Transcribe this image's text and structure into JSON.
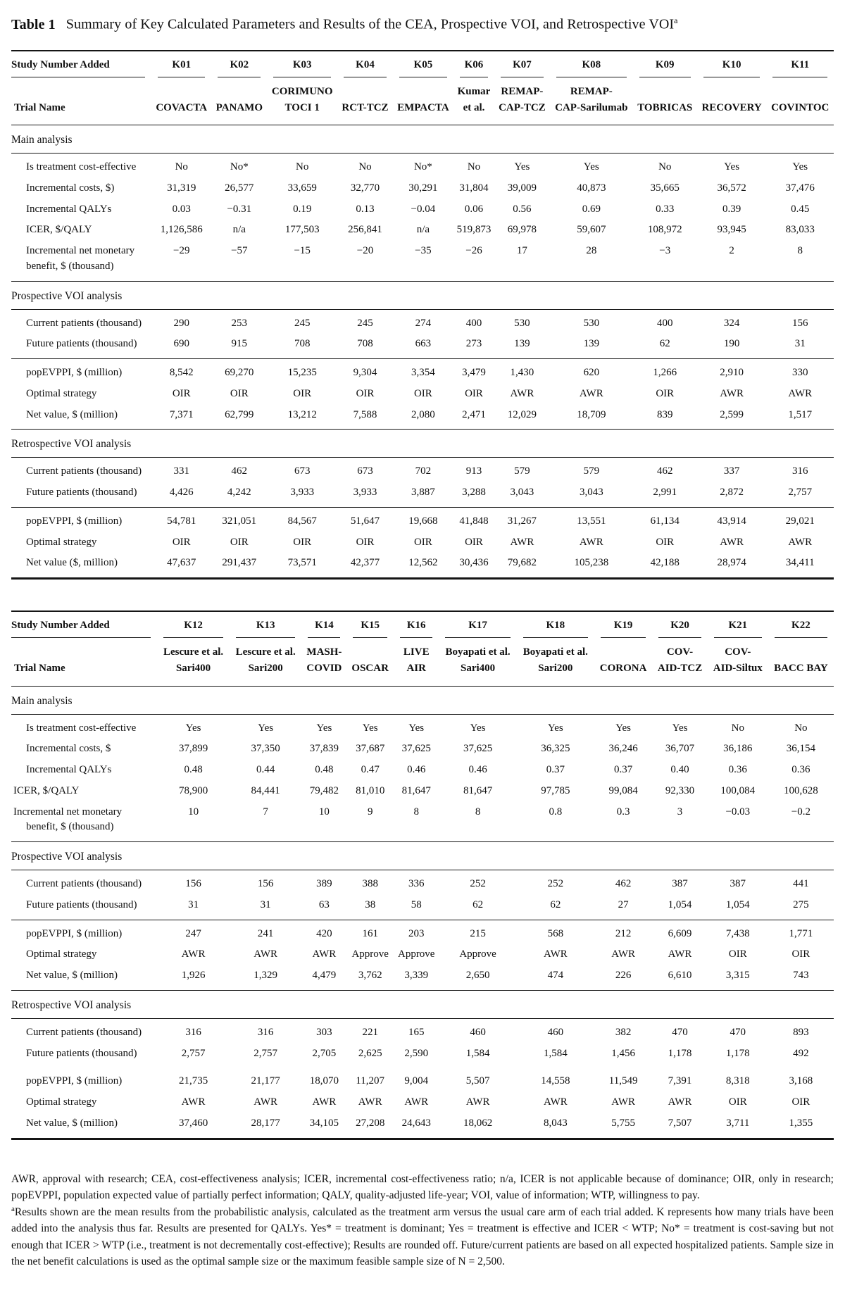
{
  "title": {
    "label": "Table 1",
    "text": "Summary of Key Calculated Parameters and Results of the CEA, Prospective VOI, and Retrospective VOI",
    "superscript": "a"
  },
  "tables": [
    {
      "study_header_label": "Study Number Added",
      "trial_header_label": "Trial Name",
      "studies": [
        "K01",
        "K02",
        "K03",
        "K04",
        "K05",
        "K06",
        "K07",
        "K08",
        "K09",
        "K10",
        "K11"
      ],
      "trials": [
        [
          "COVACTA"
        ],
        [
          "PANAMO"
        ],
        [
          "CORIMUNO",
          "TOCI 1"
        ],
        [
          "RCT-TCZ"
        ],
        [
          "EMPACTA"
        ],
        [
          "Kumar",
          "et al."
        ],
        [
          "REMAP-",
          "CAP-TCZ"
        ],
        [
          "REMAP-",
          "CAP-Sarilumab"
        ],
        [
          "TOBRICAS"
        ],
        [
          "RECOVERY"
        ],
        [
          "COVINTOC"
        ]
      ],
      "sections": [
        {
          "heading": "Main analysis",
          "divider": "rule",
          "groups": [
            [
              {
                "label": [
                  "Is treatment cost-effective"
                ],
                "values": [
                  "No",
                  "No*",
                  "No",
                  "No",
                  "No*",
                  "No",
                  "Yes",
                  "Yes",
                  "No",
                  "Yes",
                  "Yes"
                ]
              },
              {
                "label": [
                  "Incremental costs, $)"
                ],
                "values": [
                  "31,319",
                  "26,577",
                  "33,659",
                  "32,770",
                  "30,291",
                  "31,804",
                  "39,009",
                  "40,873",
                  "35,665",
                  "36,572",
                  "37,476"
                ]
              },
              {
                "label": [
                  "Incremental QALYs"
                ],
                "values": [
                  "0.03",
                  "−0.31",
                  "0.19",
                  "0.13",
                  "−0.04",
                  "0.06",
                  "0.56",
                  "0.69",
                  "0.33",
                  "0.39",
                  "0.45"
                ]
              },
              {
                "label": [
                  "ICER, $/QALY"
                ],
                "values": [
                  "1,126,586",
                  "n/a",
                  "177,503",
                  "256,841",
                  "n/a",
                  "519,873",
                  "69,978",
                  "59,607",
                  "108,972",
                  "93,945",
                  "83,033"
                ]
              },
              {
                "label": [
                  "Incremental net monetary",
                  "benefit, $ (thousand)"
                ],
                "values": [
                  "−29",
                  "−57",
                  "−15",
                  "−20",
                  "−35",
                  "−26",
                  "17",
                  "28",
                  "−3",
                  "2",
                  "8"
                ]
              }
            ]
          ]
        },
        {
          "heading": "Prospective VOI analysis",
          "divider": "rule",
          "groups": [
            [
              {
                "label": [
                  "Current patients (thousand)"
                ],
                "values": [
                  "290",
                  "253",
                  "245",
                  "245",
                  "274",
                  "400",
                  "530",
                  "530",
                  "400",
                  "324",
                  "156"
                ]
              },
              {
                "label": [
                  "Future patients (thousand)"
                ],
                "values": [
                  "690",
                  "915",
                  "708",
                  "708",
                  "663",
                  "273",
                  "139",
                  "139",
                  "62",
                  "190",
                  "31"
                ]
              }
            ],
            [
              {
                "label": [
                  "popEVPPI, $ (million)"
                ],
                "values": [
                  "8,542",
                  "69,270",
                  "15,235",
                  "9,304",
                  "3,354",
                  "3,479",
                  "1,430",
                  "620",
                  "1,266",
                  "2,910",
                  "330"
                ]
              },
              {
                "label": [
                  "Optimal strategy"
                ],
                "values": [
                  "OIR",
                  "OIR",
                  "OIR",
                  "OIR",
                  "OIR",
                  "OIR",
                  "AWR",
                  "AWR",
                  "OIR",
                  "AWR",
                  "AWR"
                ]
              },
              {
                "label": [
                  "Net value, $ (million)"
                ],
                "values": [
                  "7,371",
                  "62,799",
                  "13,212",
                  "7,588",
                  "2,080",
                  "2,471",
                  "12,029",
                  "18,709",
                  "839",
                  "2,599",
                  "1,517"
                ]
              }
            ]
          ]
        },
        {
          "heading": "Retrospective VOI analysis",
          "divider": "rule",
          "groups": [
            [
              {
                "label": [
                  "Current patients (thousand)"
                ],
                "values": [
                  "331",
                  "462",
                  "673",
                  "673",
                  "702",
                  "913",
                  "579",
                  "579",
                  "462",
                  "337",
                  "316"
                ]
              },
              {
                "label": [
                  "Future patients (thousand)"
                ],
                "values": [
                  "4,426",
                  "4,242",
                  "3,933",
                  "3,933",
                  "3,887",
                  "3,288",
                  "3,043",
                  "3,043",
                  "2,991",
                  "2,872",
                  "2,757"
                ]
              }
            ],
            [
              {
                "label": [
                  "popEVPPI, $ (million)"
                ],
                "values": [
                  "54,781",
                  "321,051",
                  "84,567",
                  "51,647",
                  "19,668",
                  "41,848",
                  "31,267",
                  "13,551",
                  "61,134",
                  "43,914",
                  "29,021"
                ]
              },
              {
                "label": [
                  "Optimal strategy"
                ],
                "values": [
                  "OIR",
                  "OIR",
                  "OIR",
                  "OIR",
                  "OIR",
                  "OIR",
                  "AWR",
                  "AWR",
                  "OIR",
                  "AWR",
                  "AWR"
                ]
              },
              {
                "label": [
                  "Net value ($, million)"
                ],
                "values": [
                  "47,637",
                  "291,437",
                  "73,571",
                  "42,377",
                  "12,562",
                  "30,436",
                  "79,682",
                  "105,238",
                  "42,188",
                  "28,974",
                  "34,411"
                ]
              }
            ]
          ]
        }
      ]
    },
    {
      "study_header_label": "Study Number Added",
      "trial_header_label": "Trial Name",
      "studies": [
        "K12",
        "K13",
        "K14",
        "K15",
        "K16",
        "K17",
        "K18",
        "K19",
        "K20",
        "K21",
        "K22"
      ],
      "trials": [
        [
          "Lescure et al.",
          "Sari400"
        ],
        [
          "Lescure et al.",
          "Sari200"
        ],
        [
          "MASH-",
          "COVID"
        ],
        [
          "OSCAR"
        ],
        [
          "LIVE",
          "AIR"
        ],
        [
          "Boyapati et al.",
          "Sari400"
        ],
        [
          "Boyapati et al.",
          "Sari200"
        ],
        [
          "CORONA"
        ],
        [
          "COV-",
          "AID-TCZ"
        ],
        [
          "COV-",
          "AID-Siltux"
        ],
        [
          "BACC BAY"
        ]
      ],
      "sections": [
        {
          "heading": "Main analysis",
          "divider": "rule",
          "groups": [
            [
              {
                "label": [
                  "Is treatment cost-effective"
                ],
                "values": [
                  "Yes",
                  "Yes",
                  "Yes",
                  "Yes",
                  "Yes",
                  "Yes",
                  "Yes",
                  "Yes",
                  "Yes",
                  "No",
                  "No"
                ]
              },
              {
                "label": [
                  "Incremental costs, $"
                ],
                "values": [
                  "37,899",
                  "37,350",
                  "37,839",
                  "37,687",
                  "37,625",
                  "37,625",
                  "36,325",
                  "36,246",
                  "36,707",
                  "36,186",
                  "36,154"
                ]
              },
              {
                "label": [
                  "Incremental QALYs"
                ],
                "values": [
                  "0.48",
                  "0.44",
                  "0.48",
                  "0.47",
                  "0.46",
                  "0.46",
                  "0.37",
                  "0.37",
                  "0.40",
                  "0.36",
                  "0.36"
                ]
              },
              {
                "label": [
                  "ICER, $/QALY"
                ],
                "flush": true,
                "values": [
                  "78,900",
                  "84,441",
                  "79,482",
                  "81,010",
                  "81,647",
                  "81,647",
                  "97,785",
                  "99,084",
                  "92,330",
                  "100,084",
                  "100,628"
                ]
              },
              {
                "label": [
                  "Incremental net monetary",
                  "benefit, $ (thousand)"
                ],
                "flush": true,
                "values": [
                  "10",
                  "7",
                  "10",
                  "9",
                  "8",
                  "8",
                  "0.8",
                  "0.3",
                  "3",
                  "−0.03",
                  "−0.2"
                ]
              }
            ]
          ]
        },
        {
          "heading": "Prospective VOI analysis",
          "divider": "rule",
          "groups": [
            [
              {
                "label": [
                  "Current patients (thousand)"
                ],
                "values": [
                  "156",
                  "156",
                  "389",
                  "388",
                  "336",
                  "252",
                  "252",
                  "462",
                  "387",
                  "387",
                  "441"
                ]
              },
              {
                "label": [
                  "Future patients (thousand)"
                ],
                "values": [
                  "31",
                  "31",
                  "63",
                  "38",
                  "58",
                  "62",
                  "62",
                  "27",
                  "1,054",
                  "1,054",
                  "275"
                ]
              }
            ],
            [
              {
                "label": [
                  "popEVPPI, $ (million)"
                ],
                "values": [
                  "247",
                  "241",
                  "420",
                  "161",
                  "203",
                  "215",
                  "568",
                  "212",
                  "6,609",
                  "7,438",
                  "1,771"
                ]
              },
              {
                "label": [
                  "Optimal strategy"
                ],
                "values": [
                  "AWR",
                  "AWR",
                  "AWR",
                  "Approve",
                  "Approve",
                  "Approve",
                  "AWR",
                  "AWR",
                  "AWR",
                  "OIR",
                  "OIR"
                ]
              },
              {
                "label": [
                  "Net value, $ (million)"
                ],
                "values": [
                  "1,926",
                  "1,329",
                  "4,479",
                  "3,762",
                  "3,339",
                  "2,650",
                  "474",
                  "226",
                  "6,610",
                  "3,315",
                  "743"
                ]
              }
            ]
          ]
        },
        {
          "heading": "Retrospective VOI analysis",
          "divider": "gap",
          "groups": [
            [
              {
                "label": [
                  "Current patients (thousand)"
                ],
                "values": [
                  "316",
                  "316",
                  "303",
                  "221",
                  "165",
                  "460",
                  "460",
                  "382",
                  "470",
                  "470",
                  "893"
                ]
              },
              {
                "label": [
                  "Future patients (thousand)"
                ],
                "values": [
                  "2,757",
                  "2,757",
                  "2,705",
                  "2,625",
                  "2,590",
                  "1,584",
                  "1,584",
                  "1,456",
                  "1,178",
                  "1,178",
                  "492"
                ]
              }
            ],
            [
              {
                "label": [
                  "popEVPPI, $ (million)"
                ],
                "values": [
                  "21,735",
                  "21,177",
                  "18,070",
                  "11,207",
                  "9,004",
                  "5,507",
                  "14,558",
                  "11,549",
                  "7,391",
                  "8,318",
                  "3,168"
                ]
              },
              {
                "label": [
                  "Optimal strategy"
                ],
                "values": [
                  "AWR",
                  "AWR",
                  "AWR",
                  "AWR",
                  "AWR",
                  "AWR",
                  "AWR",
                  "AWR",
                  "AWR",
                  "OIR",
                  "OIR"
                ]
              },
              {
                "label": [
                  "Net value, $ (million)"
                ],
                "values": [
                  "37,460",
                  "28,177",
                  "34,105",
                  "27,208",
                  "24,643",
                  "18,062",
                  "8,043",
                  "5,755",
                  "7,507",
                  "3,711",
                  "1,355"
                ]
              }
            ]
          ]
        }
      ]
    }
  ],
  "footnotes": [
    {
      "marker": "",
      "text": "AWR, approval with research; CEA, cost-effectiveness analysis; ICER, incremental cost-effectiveness ratio; n/a, ICER is not applicable because of dominance; OIR, only in research; popEVPPI, population expected value of partially perfect information; QALY, quality-adjusted life-year; VOI, value of information; WTP, willingness to pay."
    },
    {
      "marker": "a",
      "text": "Results shown are the mean results from the probabilistic analysis, calculated as the treatment arm versus the usual care arm of each trial added. K represents how many trials have been added into the analysis thus far. Results are presented for QALYs. Yes* = treatment is dominant; Yes = treatment is effective and ICER < WTP; No* = treatment is cost-saving but not enough that ICER > WTP (i.e., treatment is not decrementally cost-effective); Results are rounded off. Future/current patients are based on all expected hospitalized patients. Sample size in the net benefit calculations is used as the optimal sample size or the maximum feasible sample size of N = 2,500."
    }
  ]
}
